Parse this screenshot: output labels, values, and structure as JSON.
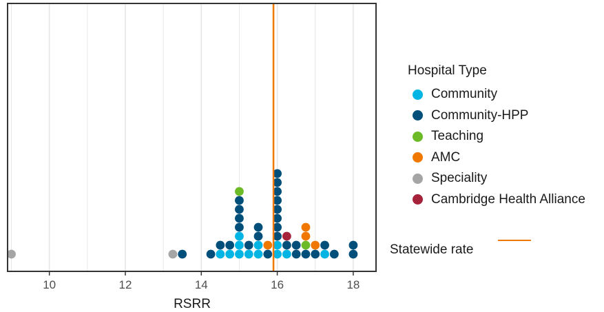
{
  "chart_data": {
    "type": "dotplot",
    "title": "",
    "xlabel": "RSRR",
    "ylabel": "",
    "xlim": [
      8.9,
      18.6
    ],
    "x_ticks": [
      10,
      12,
      14,
      16,
      18
    ],
    "grid": true,
    "legend_position": "right",
    "legend_title": "Hospital Type",
    "categories": [
      {
        "key": "community",
        "name": "Community",
        "color": "#00b4e4"
      },
      {
        "key": "community_hpp",
        "name": "Community-HPP",
        "color": "#004f7a"
      },
      {
        "key": "teaching",
        "name": "Teaching",
        "color": "#6cbb26"
      },
      {
        "key": "amc",
        "name": "AMC",
        "color": "#f07800"
      },
      {
        "key": "speciality",
        "name": "Speciality",
        "color": "#a5a5a5"
      },
      {
        "key": "cambridge",
        "name": "Cambridge Health Alliance",
        "color": "#a6213a"
      }
    ],
    "stacks": [
      {
        "x": 9.0,
        "points": [
          "speciality"
        ]
      },
      {
        "x": 13.25,
        "points": [
          "speciality"
        ]
      },
      {
        "x": 13.5,
        "points": [
          "community_hpp"
        ]
      },
      {
        "x": 14.25,
        "points": [
          "community_hpp"
        ]
      },
      {
        "x": 14.5,
        "points": [
          "community",
          "community_hpp"
        ]
      },
      {
        "x": 14.75,
        "points": [
          "community",
          "community_hpp"
        ]
      },
      {
        "x": 15.0,
        "points": [
          "community",
          "community",
          "community",
          "community_hpp",
          "community_hpp",
          "community_hpp",
          "community_hpp",
          "teaching"
        ]
      },
      {
        "x": 15.25,
        "points": [
          "community",
          "community_hpp"
        ]
      },
      {
        "x": 15.5,
        "points": [
          "community",
          "community",
          "community_hpp",
          "community_hpp"
        ]
      },
      {
        "x": 15.75,
        "points": [
          "community_hpp",
          "amc"
        ]
      },
      {
        "x": 16.0,
        "points": [
          "community",
          "community",
          "community_hpp",
          "community_hpp",
          "community_hpp",
          "community_hpp",
          "community_hpp",
          "community_hpp",
          "community_hpp",
          "community_hpp"
        ]
      },
      {
        "x": 16.25,
        "points": [
          "community",
          "community_hpp",
          "cambridge"
        ]
      },
      {
        "x": 16.5,
        "points": [
          "community_hpp",
          "community_hpp"
        ]
      },
      {
        "x": 16.75,
        "points": [
          "community_hpp",
          "teaching",
          "amc",
          "amc"
        ]
      },
      {
        "x": 17.0,
        "points": [
          "community_hpp",
          "amc"
        ]
      },
      {
        "x": 17.25,
        "points": [
          "community",
          "community_hpp"
        ]
      },
      {
        "x": 17.5,
        "points": [
          "community_hpp"
        ]
      },
      {
        "x": 18.0,
        "points": [
          "community_hpp",
          "community_hpp"
        ]
      }
    ],
    "statewide_rate": {
      "label": "Statewide rate",
      "x": 15.9,
      "color": "#f07800"
    }
  }
}
